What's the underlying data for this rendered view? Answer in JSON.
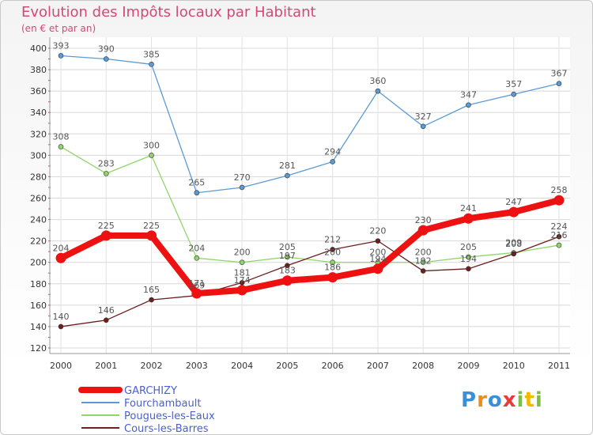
{
  "chart_data": {
    "type": "line",
    "title": "Evolution des Impôts locaux par Habitant",
    "subtitle": "(en € et par an)",
    "categories": [
      "2000",
      "2001",
      "2002",
      "2003",
      "2004",
      "2005",
      "2006",
      "2007",
      "2008",
      "2009",
      "2010",
      "2011"
    ],
    "ylim": [
      120,
      400
    ],
    "yticks": [
      120,
      140,
      160,
      180,
      200,
      220,
      240,
      260,
      280,
      300,
      320,
      340,
      360,
      380,
      400
    ],
    "series": [
      {
        "name": "GARCHIZY",
        "color": "#ee1111",
        "emphasis": true,
        "values": [
          204,
          225,
          225,
          171,
          174,
          183,
          186,
          194,
          230,
          241,
          247,
          258
        ]
      },
      {
        "name": "Fourchambault",
        "color": "#5b9bd5",
        "values": [
          393,
          390,
          385,
          265,
          270,
          281,
          294,
          360,
          327,
          347,
          357,
          367
        ]
      },
      {
        "name": "Pougues-les-Eaux",
        "color": "#8fd66a",
        "values": [
          308,
          283,
          300,
          204,
          200,
          205,
          200,
          200,
          200,
          205,
          209,
          216
        ]
      },
      {
        "name": "Cours-les-Barres",
        "color": "#6b1f1f",
        "values": [
          140,
          146,
          165,
          169,
          181,
          197,
          212,
          220,
          192,
          194,
          208,
          224
        ]
      }
    ],
    "value_labels": [
      [
        "204",
        "225",
        "225",
        "171",
        "174",
        "183",
        "186",
        "194",
        "230",
        "241",
        "247",
        "258"
      ],
      [
        "393",
        "390",
        "385",
        "265",
        "270",
        "281",
        "294",
        "360",
        "327",
        "347",
        "357",
        "367"
      ],
      [
        "308",
        "283",
        "300",
        "204",
        "200",
        "205",
        "200",
        "200",
        "200",
        "205",
        "209",
        "216"
      ],
      [
        "140",
        "146",
        "165",
        "169",
        "181",
        "197",
        "212",
        "220",
        "192",
        "194",
        "208",
        "224"
      ]
    ],
    "legend_position": "bottom-left",
    "grid": true
  },
  "logo": {
    "letters": [
      "P",
      "r",
      "o",
      "x",
      "i",
      "t",
      "i"
    ],
    "colors": [
      "#3a8fd8",
      "#f08a1a",
      "#3a8fd8",
      "#e83a3a",
      "#7bc043",
      "#f5b800",
      "#7bc043"
    ]
  }
}
